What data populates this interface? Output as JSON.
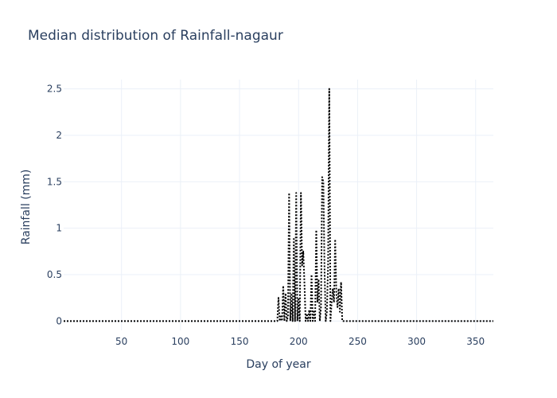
{
  "chart_data": {
    "type": "line",
    "title": "Median distribution of Rainfall-nagaur",
    "xlabel": "Day of year",
    "ylabel": "Rainfall (mm)",
    "xlim": [
      1,
      365
    ],
    "ylim": [
      -0.1,
      2.6
    ],
    "x_ticks": [
      50,
      100,
      150,
      200,
      250,
      300,
      350
    ],
    "x_tick_labels": [
      "50",
      "100",
      "150",
      "200",
      "250",
      "300",
      "350"
    ],
    "y_ticks": [
      0,
      0.5,
      1,
      1.5,
      2,
      2.5
    ],
    "y_tick_labels": [
      "0",
      "0.5",
      "1",
      "1.5",
      "2",
      "2.5"
    ],
    "grid": true,
    "series": [
      {
        "color": "#000000",
        "dash": "dot",
        "nonzero": [
          [
            183,
            0.25
          ],
          [
            185,
            0.05
          ],
          [
            187,
            0.38
          ],
          [
            189,
            0.3
          ],
          [
            191,
            0.05
          ],
          [
            192,
            1.38
          ],
          [
            194,
            0.3
          ],
          [
            196,
            0.9
          ],
          [
            198,
            1.38
          ],
          [
            200,
            0.25
          ],
          [
            202,
            1.38
          ],
          [
            203,
            0.6
          ],
          [
            204,
            0.75
          ],
          [
            205,
            0.4
          ],
          [
            207,
            0.08
          ],
          [
            209,
            0.12
          ],
          [
            211,
            0.5
          ],
          [
            213,
            0.1
          ],
          [
            215,
            0.98
          ],
          [
            216,
            0.2
          ],
          [
            217,
            0.45
          ],
          [
            219,
            0.15
          ],
          [
            220,
            1.55
          ],
          [
            221,
            1.5
          ],
          [
            222,
            0.55
          ],
          [
            224,
            0.1
          ],
          [
            225,
            0.6
          ],
          [
            226,
            2.5
          ],
          [
            228,
            0.2
          ],
          [
            229,
            0.35
          ],
          [
            230,
            0.2
          ],
          [
            231,
            0.88
          ],
          [
            232,
            0.3
          ],
          [
            233,
            0.15
          ],
          [
            234,
            0.35
          ],
          [
            235,
            0.1
          ],
          [
            236,
            0.42
          ]
        ]
      }
    ]
  }
}
